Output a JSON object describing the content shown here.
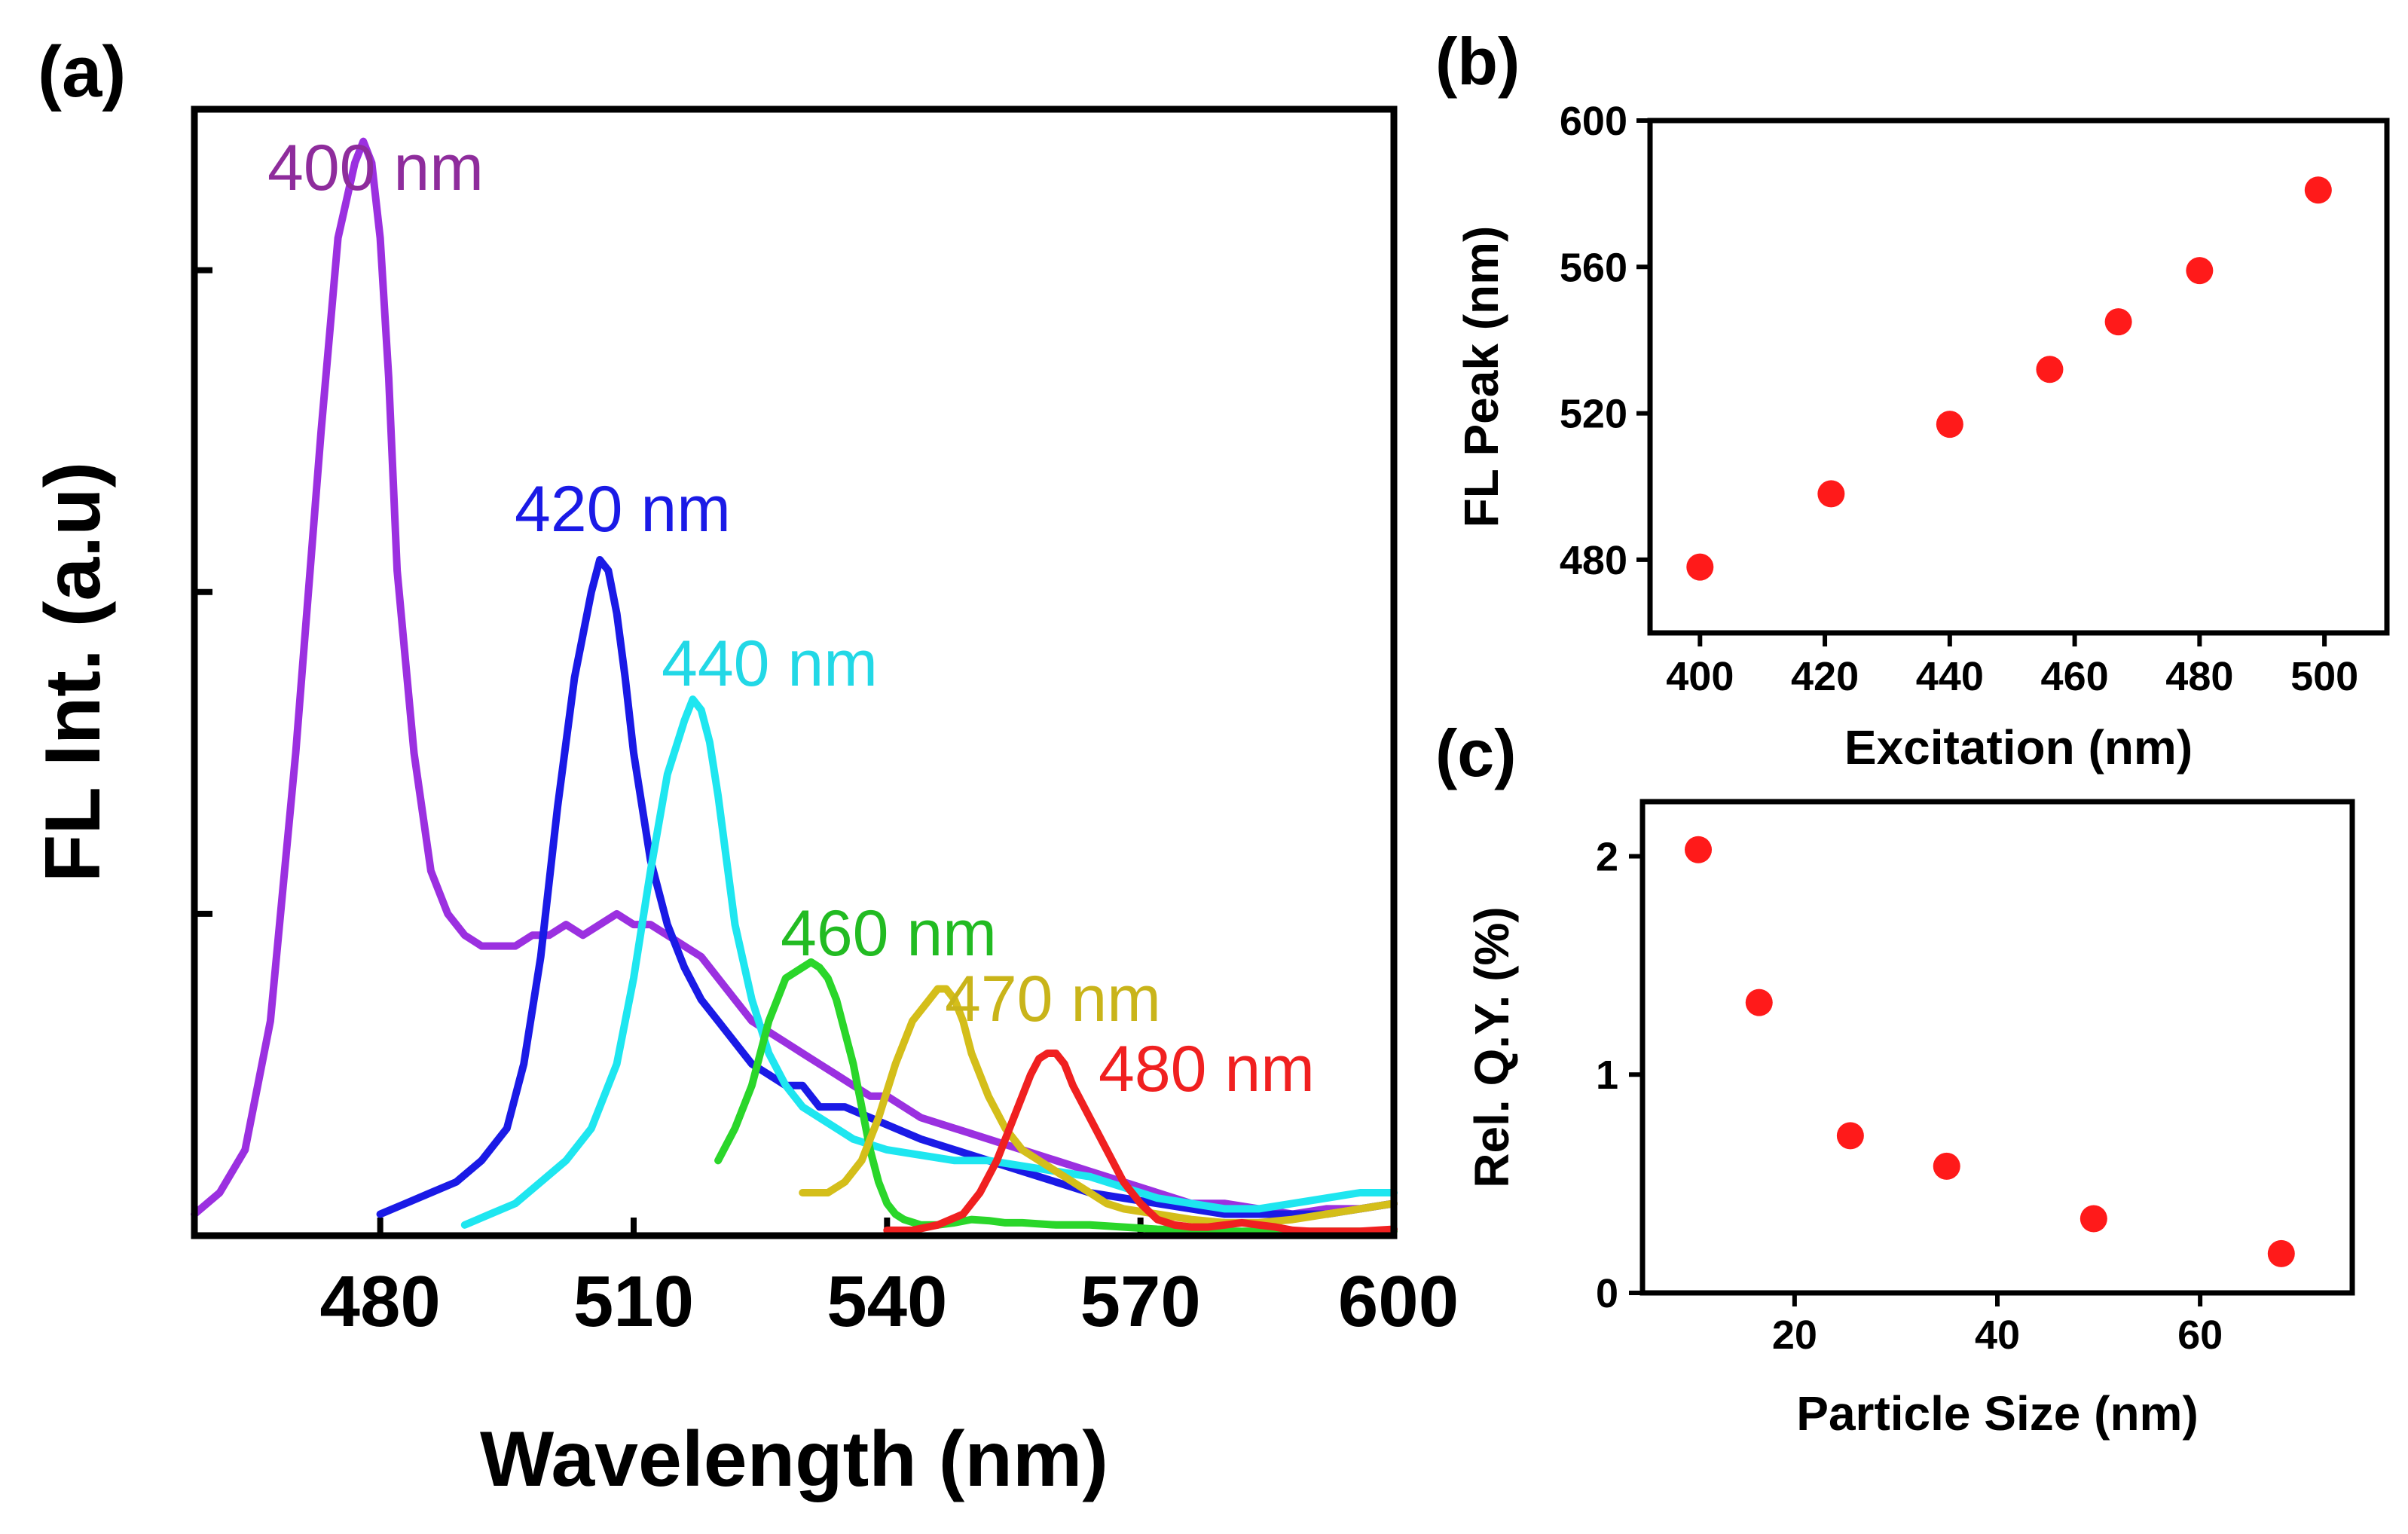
{
  "chart_data": [
    {
      "panel": "(a)",
      "type": "line",
      "xlabel": "Wavelength (nm)",
      "ylabel": "FL Int. (a.u)",
      "xlim": [
        458,
        600
      ],
      "ylim": [
        0,
        1.05
      ],
      "xticks": [
        480,
        510,
        540,
        570,
        600
      ],
      "yticks_unlabeled": [
        0.3,
        0.6,
        0.9
      ],
      "grid": false,
      "series": [
        {
          "name": "400 nm",
          "color": "#9b30e0",
          "label_color": "#8e2c9c",
          "x": [
            458,
            461,
            464,
            467,
            470,
            473,
            475,
            477,
            478,
            479,
            480,
            481,
            482,
            484,
            486,
            488,
            490,
            492,
            494,
            496,
            498,
            500,
            502,
            504,
            506,
            508,
            510,
            512,
            514,
            516,
            518,
            520,
            522,
            524,
            526,
            528,
            530,
            532,
            534,
            536,
            538,
            540,
            544,
            548,
            552,
            556,
            560,
            564,
            568,
            572,
            576,
            580,
            584,
            588,
            592,
            596,
            600
          ],
          "y": [
            0.02,
            0.04,
            0.08,
            0.2,
            0.45,
            0.75,
            0.93,
            1.0,
            1.02,
            1.0,
            0.93,
            0.8,
            0.62,
            0.45,
            0.34,
            0.3,
            0.28,
            0.27,
            0.27,
            0.27,
            0.28,
            0.28,
            0.29,
            0.28,
            0.29,
            0.3,
            0.29,
            0.29,
            0.28,
            0.27,
            0.26,
            0.24,
            0.22,
            0.2,
            0.19,
            0.18,
            0.17,
            0.16,
            0.15,
            0.14,
            0.13,
            0.13,
            0.11,
            0.1,
            0.09,
            0.08,
            0.07,
            0.06,
            0.05,
            0.04,
            0.03,
            0.03,
            0.025,
            0.02,
            0.025,
            0.025,
            0.03
          ]
        },
        {
          "name": "420 nm",
          "color": "#1a1ae6",
          "label_color": "#1a1ae6",
          "x": [
            480,
            483,
            486,
            489,
            492,
            495,
            497,
            499,
            501,
            503,
            505,
            506,
            507,
            508,
            509,
            510,
            511,
            512,
            514,
            516,
            518,
            520,
            522,
            524,
            526,
            528,
            530,
            532,
            535,
            538,
            541,
            544,
            548,
            552,
            556,
            560,
            564,
            568,
            572,
            576,
            580,
            584,
            588,
            592,
            596,
            600
          ],
          "y": [
            0.02,
            0.03,
            0.04,
            0.05,
            0.07,
            0.1,
            0.16,
            0.26,
            0.4,
            0.52,
            0.6,
            0.63,
            0.62,
            0.58,
            0.52,
            0.45,
            0.4,
            0.35,
            0.29,
            0.25,
            0.22,
            0.2,
            0.18,
            0.16,
            0.15,
            0.14,
            0.14,
            0.12,
            0.12,
            0.11,
            0.1,
            0.09,
            0.08,
            0.07,
            0.06,
            0.05,
            0.04,
            0.035,
            0.03,
            0.025,
            0.02,
            0.02,
            0.02,
            0.02,
            0.025,
            0.03
          ]
        },
        {
          "name": "440 nm",
          "color": "#1ee6f0",
          "label_color": "#22d8e6",
          "x": [
            490,
            493,
            496,
            499,
            502,
            505,
            508,
            510,
            512,
            514,
            516,
            517,
            518,
            519,
            520,
            521,
            522,
            524,
            526,
            528,
            530,
            532,
            534,
            536,
            538,
            540,
            544,
            548,
            552,
            556,
            560,
            564,
            568,
            572,
            576,
            580,
            584,
            588,
            592,
            596,
            600
          ],
          "y": [
            0.01,
            0.02,
            0.03,
            0.05,
            0.07,
            0.1,
            0.16,
            0.24,
            0.34,
            0.43,
            0.48,
            0.5,
            0.49,
            0.46,
            0.41,
            0.35,
            0.29,
            0.22,
            0.17,
            0.14,
            0.12,
            0.11,
            0.1,
            0.09,
            0.085,
            0.08,
            0.075,
            0.07,
            0.07,
            0.065,
            0.06,
            0.055,
            0.045,
            0.035,
            0.03,
            0.025,
            0.025,
            0.03,
            0.035,
            0.04,
            0.04
          ]
        },
        {
          "name": "460 nm",
          "color": "#2ad62a",
          "label_color": "#22bb22",
          "x": [
            520,
            522,
            524,
            526,
            528,
            530,
            531,
            532,
            533,
            534,
            535,
            536,
            537,
            538,
            539,
            540,
            541,
            542,
            544,
            546,
            548,
            550,
            552,
            554,
            556,
            560,
            564,
            568,
            572,
            576,
            580,
            584,
            588,
            592,
            596,
            600
          ],
          "y": [
            0.07,
            0.1,
            0.14,
            0.2,
            0.24,
            0.25,
            0.255,
            0.25,
            0.24,
            0.22,
            0.19,
            0.16,
            0.12,
            0.08,
            0.05,
            0.03,
            0.02,
            0.015,
            0.01,
            0.01,
            0.012,
            0.015,
            0.014,
            0.012,
            0.012,
            0.01,
            0.01,
            0.008,
            0.006,
            0.005,
            0.004,
            0.004,
            0.004,
            0.004,
            0.004,
            0.004
          ]
        },
        {
          "name": "470 nm",
          "color": "#d4be1a",
          "label_color": "#c9b41a",
          "x": [
            530,
            533,
            535,
            537,
            539,
            541,
            543,
            545,
            546,
            547,
            548,
            549,
            550,
            552,
            554,
            556,
            558,
            560,
            562,
            564,
            566,
            568,
            572,
            576,
            580,
            584,
            588,
            592,
            596,
            600
          ],
          "y": [
            0.04,
            0.04,
            0.05,
            0.07,
            0.11,
            0.16,
            0.2,
            0.22,
            0.23,
            0.23,
            0.22,
            0.2,
            0.17,
            0.13,
            0.1,
            0.08,
            0.07,
            0.06,
            0.05,
            0.04,
            0.03,
            0.025,
            0.02,
            0.015,
            0.012,
            0.012,
            0.015,
            0.02,
            0.025,
            0.03
          ]
        },
        {
          "name": "480 nm",
          "color": "#f02020",
          "label_color": "#f02020",
          "x": [
            540,
            543,
            546,
            549,
            551,
            553,
            555,
            557,
            558,
            559,
            560,
            561,
            562,
            564,
            566,
            568,
            570,
            572,
            574,
            576,
            578,
            580,
            582,
            584,
            586,
            588,
            590,
            592,
            594,
            596,
            598,
            600
          ],
          "y": [
            0.005,
            0.005,
            0.01,
            0.02,
            0.04,
            0.07,
            0.11,
            0.15,
            0.165,
            0.17,
            0.17,
            0.16,
            0.14,
            0.11,
            0.08,
            0.05,
            0.03,
            0.015,
            0.01,
            0.008,
            0.008,
            0.01,
            0.012,
            0.01,
            0.008,
            0.005,
            0.004,
            0.004,
            0.004,
            0.004,
            0.005,
            0.006
          ]
        }
      ]
    },
    {
      "panel": "(b)",
      "type": "scatter",
      "xlabel": "Excitation (nm)",
      "ylabel": "FL Peak  (nm)",
      "xlim": [
        392,
        510
      ],
      "ylim": [
        460,
        600
      ],
      "xticks": [
        400,
        420,
        440,
        460,
        480,
        500
      ],
      "yticks": [
        480,
        520,
        560,
        600
      ],
      "color": "#ff1a1a",
      "x": [
        400,
        421,
        440,
        456,
        467,
        480,
        499
      ],
      "y": [
        478,
        498,
        517,
        532,
        545,
        559,
        581
      ]
    },
    {
      "panel": "(c)",
      "type": "scatter",
      "xlabel": "Particle Size (nm)",
      "ylabel": "Rel. Q.Y. (%)",
      "xlim": [
        5,
        75
      ],
      "ylim": [
        0,
        2.25
      ],
      "xticks": [
        20,
        40,
        60
      ],
      "yticks": [
        0,
        1,
        2
      ],
      "color": "#ff1a1a",
      "x": [
        10.5,
        16.5,
        25.5,
        35,
        49.5,
        68
      ],
      "y": [
        2.03,
        1.33,
        0.72,
        0.58,
        0.34,
        0.18
      ]
    }
  ]
}
